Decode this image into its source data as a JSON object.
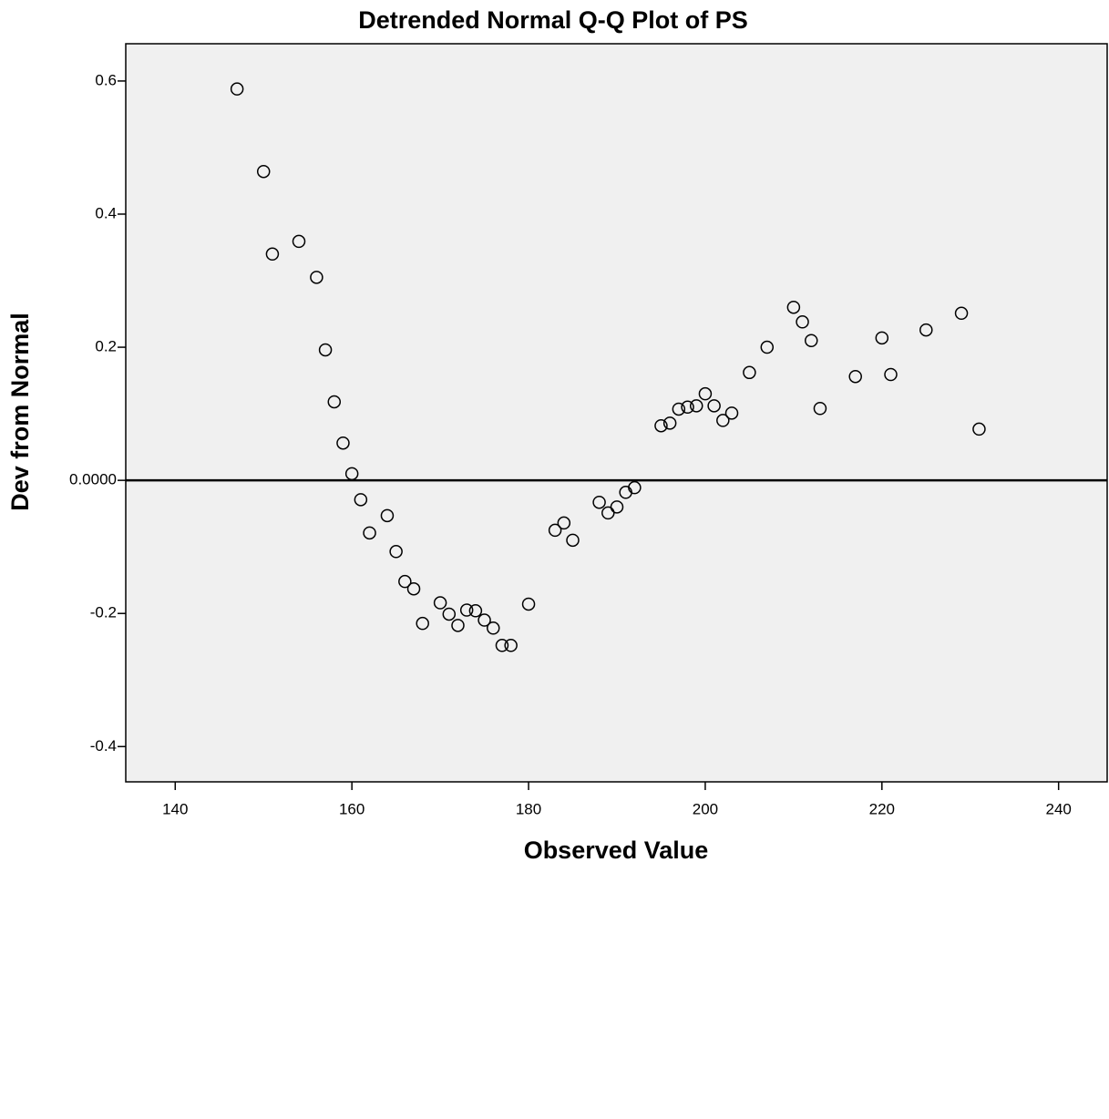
{
  "chart_data": {
    "type": "scatter",
    "title": "Detrended Normal Q-Q Plot of PS",
    "x_label": "Observed Value",
    "y_label": "Dev from Normal",
    "x": [
      147,
      150,
      151,
      154,
      156,
      157,
      158,
      159,
      160,
      161,
      162,
      164,
      165,
      166,
      167,
      168,
      170,
      171,
      172,
      173,
      174,
      175,
      176,
      177,
      178,
      180,
      183,
      184,
      185,
      188,
      189,
      190,
      191,
      192,
      195,
      196,
      197,
      198,
      199,
      200,
      201,
      202,
      203,
      205,
      207,
      210,
      211,
      212,
      213,
      217,
      220,
      221,
      225,
      229,
      231
    ],
    "values": [
      0.588,
      0.464,
      0.34,
      0.359,
      0.305,
      0.196,
      0.118,
      0.056,
      0.01,
      -0.029,
      -0.079,
      -0.053,
      -0.107,
      -0.152,
      -0.163,
      -0.215,
      -0.184,
      -0.201,
      -0.218,
      -0.195,
      -0.196,
      -0.21,
      -0.222,
      -0.248,
      -0.248,
      -0.186,
      -0.075,
      -0.064,
      -0.09,
      -0.033,
      -0.049,
      -0.04,
      -0.018,
      -0.011,
      0.082,
      0.086,
      0.107,
      0.11,
      0.112,
      0.13,
      0.112,
      0.09,
      0.101,
      0.162,
      0.2,
      0.26,
      0.238,
      0.21,
      0.108,
      0.156,
      0.214,
      0.159,
      0.226,
      0.251,
      0.077
    ],
    "xlim": [
      134.4,
      245.5
    ],
    "ylim": [
      -0.453,
      0.656
    ],
    "xticks": [
      140,
      160,
      180,
      200,
      220,
      240
    ],
    "yticks": [
      0.6,
      0.4,
      0.2,
      {
        "value": 0,
        "label": "0.0000"
      },
      -0.2,
      -0.4
    ],
    "color": "#000000",
    "background": "#f0f0f0"
  }
}
